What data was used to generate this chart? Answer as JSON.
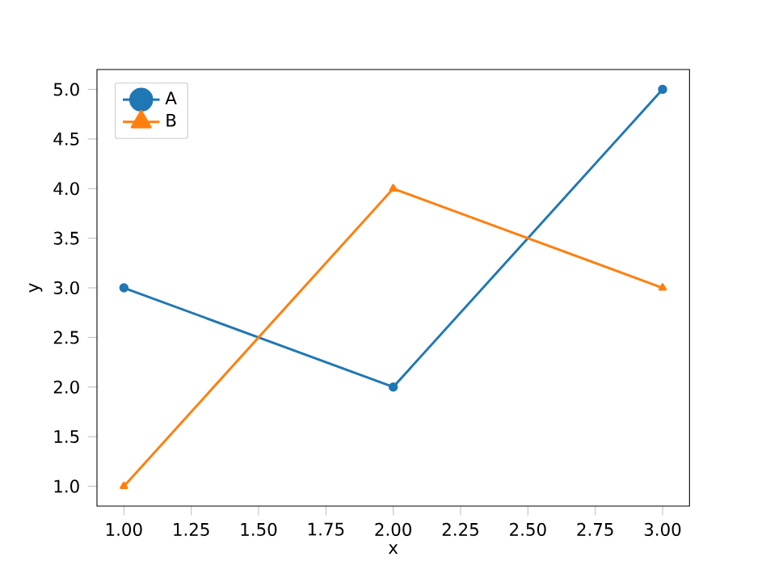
{
  "chart_data": {
    "type": "line",
    "xlabel": "x",
    "ylabel": "y",
    "x": [
      1,
      2,
      3
    ],
    "series": [
      {
        "name": "A",
        "color": "#1f77b4",
        "marker": "circle",
        "values": [
          3,
          2,
          5
        ]
      },
      {
        "name": "B",
        "color": "#ff7f0e",
        "marker": "triangle",
        "values": [
          1,
          4,
          3
        ]
      }
    ],
    "xlim": [
      0.9,
      3.1
    ],
    "ylim": [
      0.8,
      5.2
    ],
    "xticks": [
      {
        "value": 1,
        "label": "1.00"
      },
      {
        "value": 1.25,
        "label": "1.25"
      },
      {
        "value": 1.5,
        "label": "1.50"
      },
      {
        "value": 1.75,
        "label": "1.75"
      },
      {
        "value": 2,
        "label": "2.00"
      },
      {
        "value": 2.25,
        "label": "2.25"
      },
      {
        "value": 2.5,
        "label": "2.50"
      },
      {
        "value": 2.75,
        "label": "2.75"
      },
      {
        "value": 3,
        "label": "3.00"
      }
    ],
    "yticks": [
      {
        "value": 1,
        "label": "1.0"
      },
      {
        "value": 1.5,
        "label": "1.5"
      },
      {
        "value": 2,
        "label": "2.0"
      },
      {
        "value": 2.5,
        "label": "2.5"
      },
      {
        "value": 3,
        "label": "3.0"
      },
      {
        "value": 3.5,
        "label": "3.5"
      },
      {
        "value": 4,
        "label": "4.0"
      },
      {
        "value": 4.5,
        "label": "4.5"
      },
      {
        "value": 5,
        "label": "5.0"
      }
    ],
    "legend": "top left"
  }
}
